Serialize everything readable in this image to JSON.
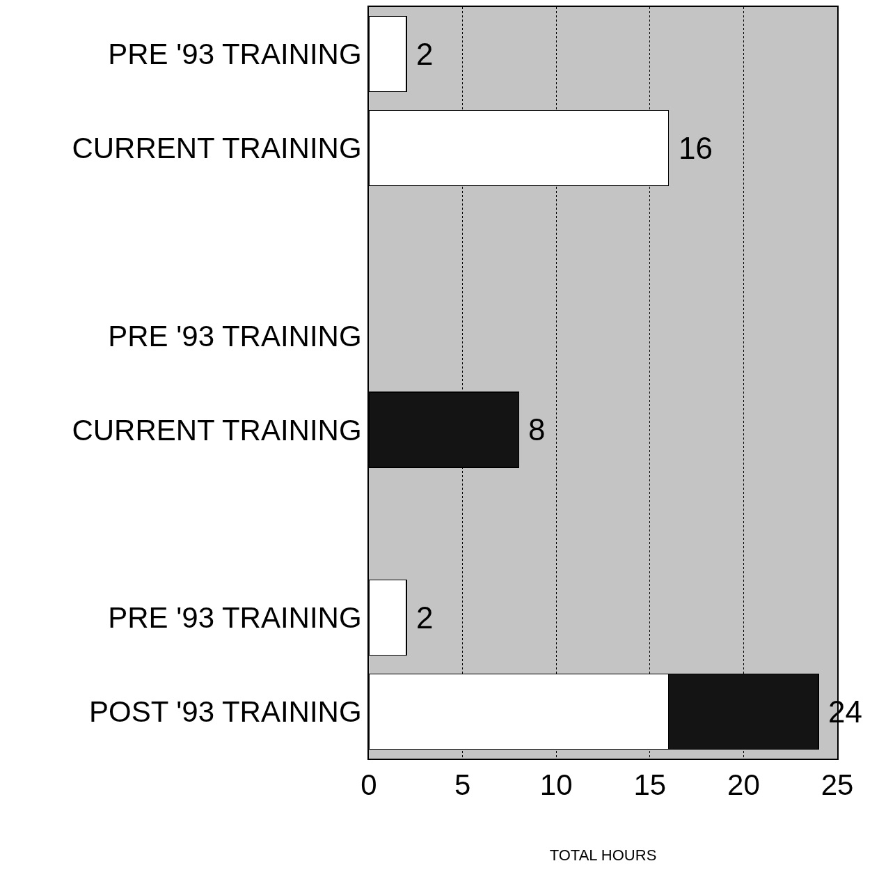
{
  "chart_data": {
    "type": "bar",
    "orientation": "horizontal",
    "stacked": true,
    "categories": [
      "PRE '93 TRAINING",
      "CURRENT TRAINING",
      null,
      "PRE '93 TRAINING",
      "CURRENT TRAINING",
      null,
      "PRE '93 TRAINING",
      "POST '93 TRAINING"
    ],
    "series": [
      {
        "color": "#ffffff",
        "values": [
          2,
          16,
          null,
          null,
          null,
          null,
          2,
          16
        ]
      },
      {
        "color": "#141414",
        "values": [
          null,
          null,
          null,
          null,
          8,
          null,
          null,
          8
        ]
      }
    ],
    "totals": [
      "2",
      "16",
      null,
      null,
      "8",
      null,
      "2",
      "24"
    ],
    "xlabel": "TOTAL HOURS",
    "xlim": [
      0,
      25
    ],
    "xticks": [
      0,
      5,
      10,
      15,
      20,
      25
    ],
    "grid": "x",
    "line_style": "dotted"
  }
}
